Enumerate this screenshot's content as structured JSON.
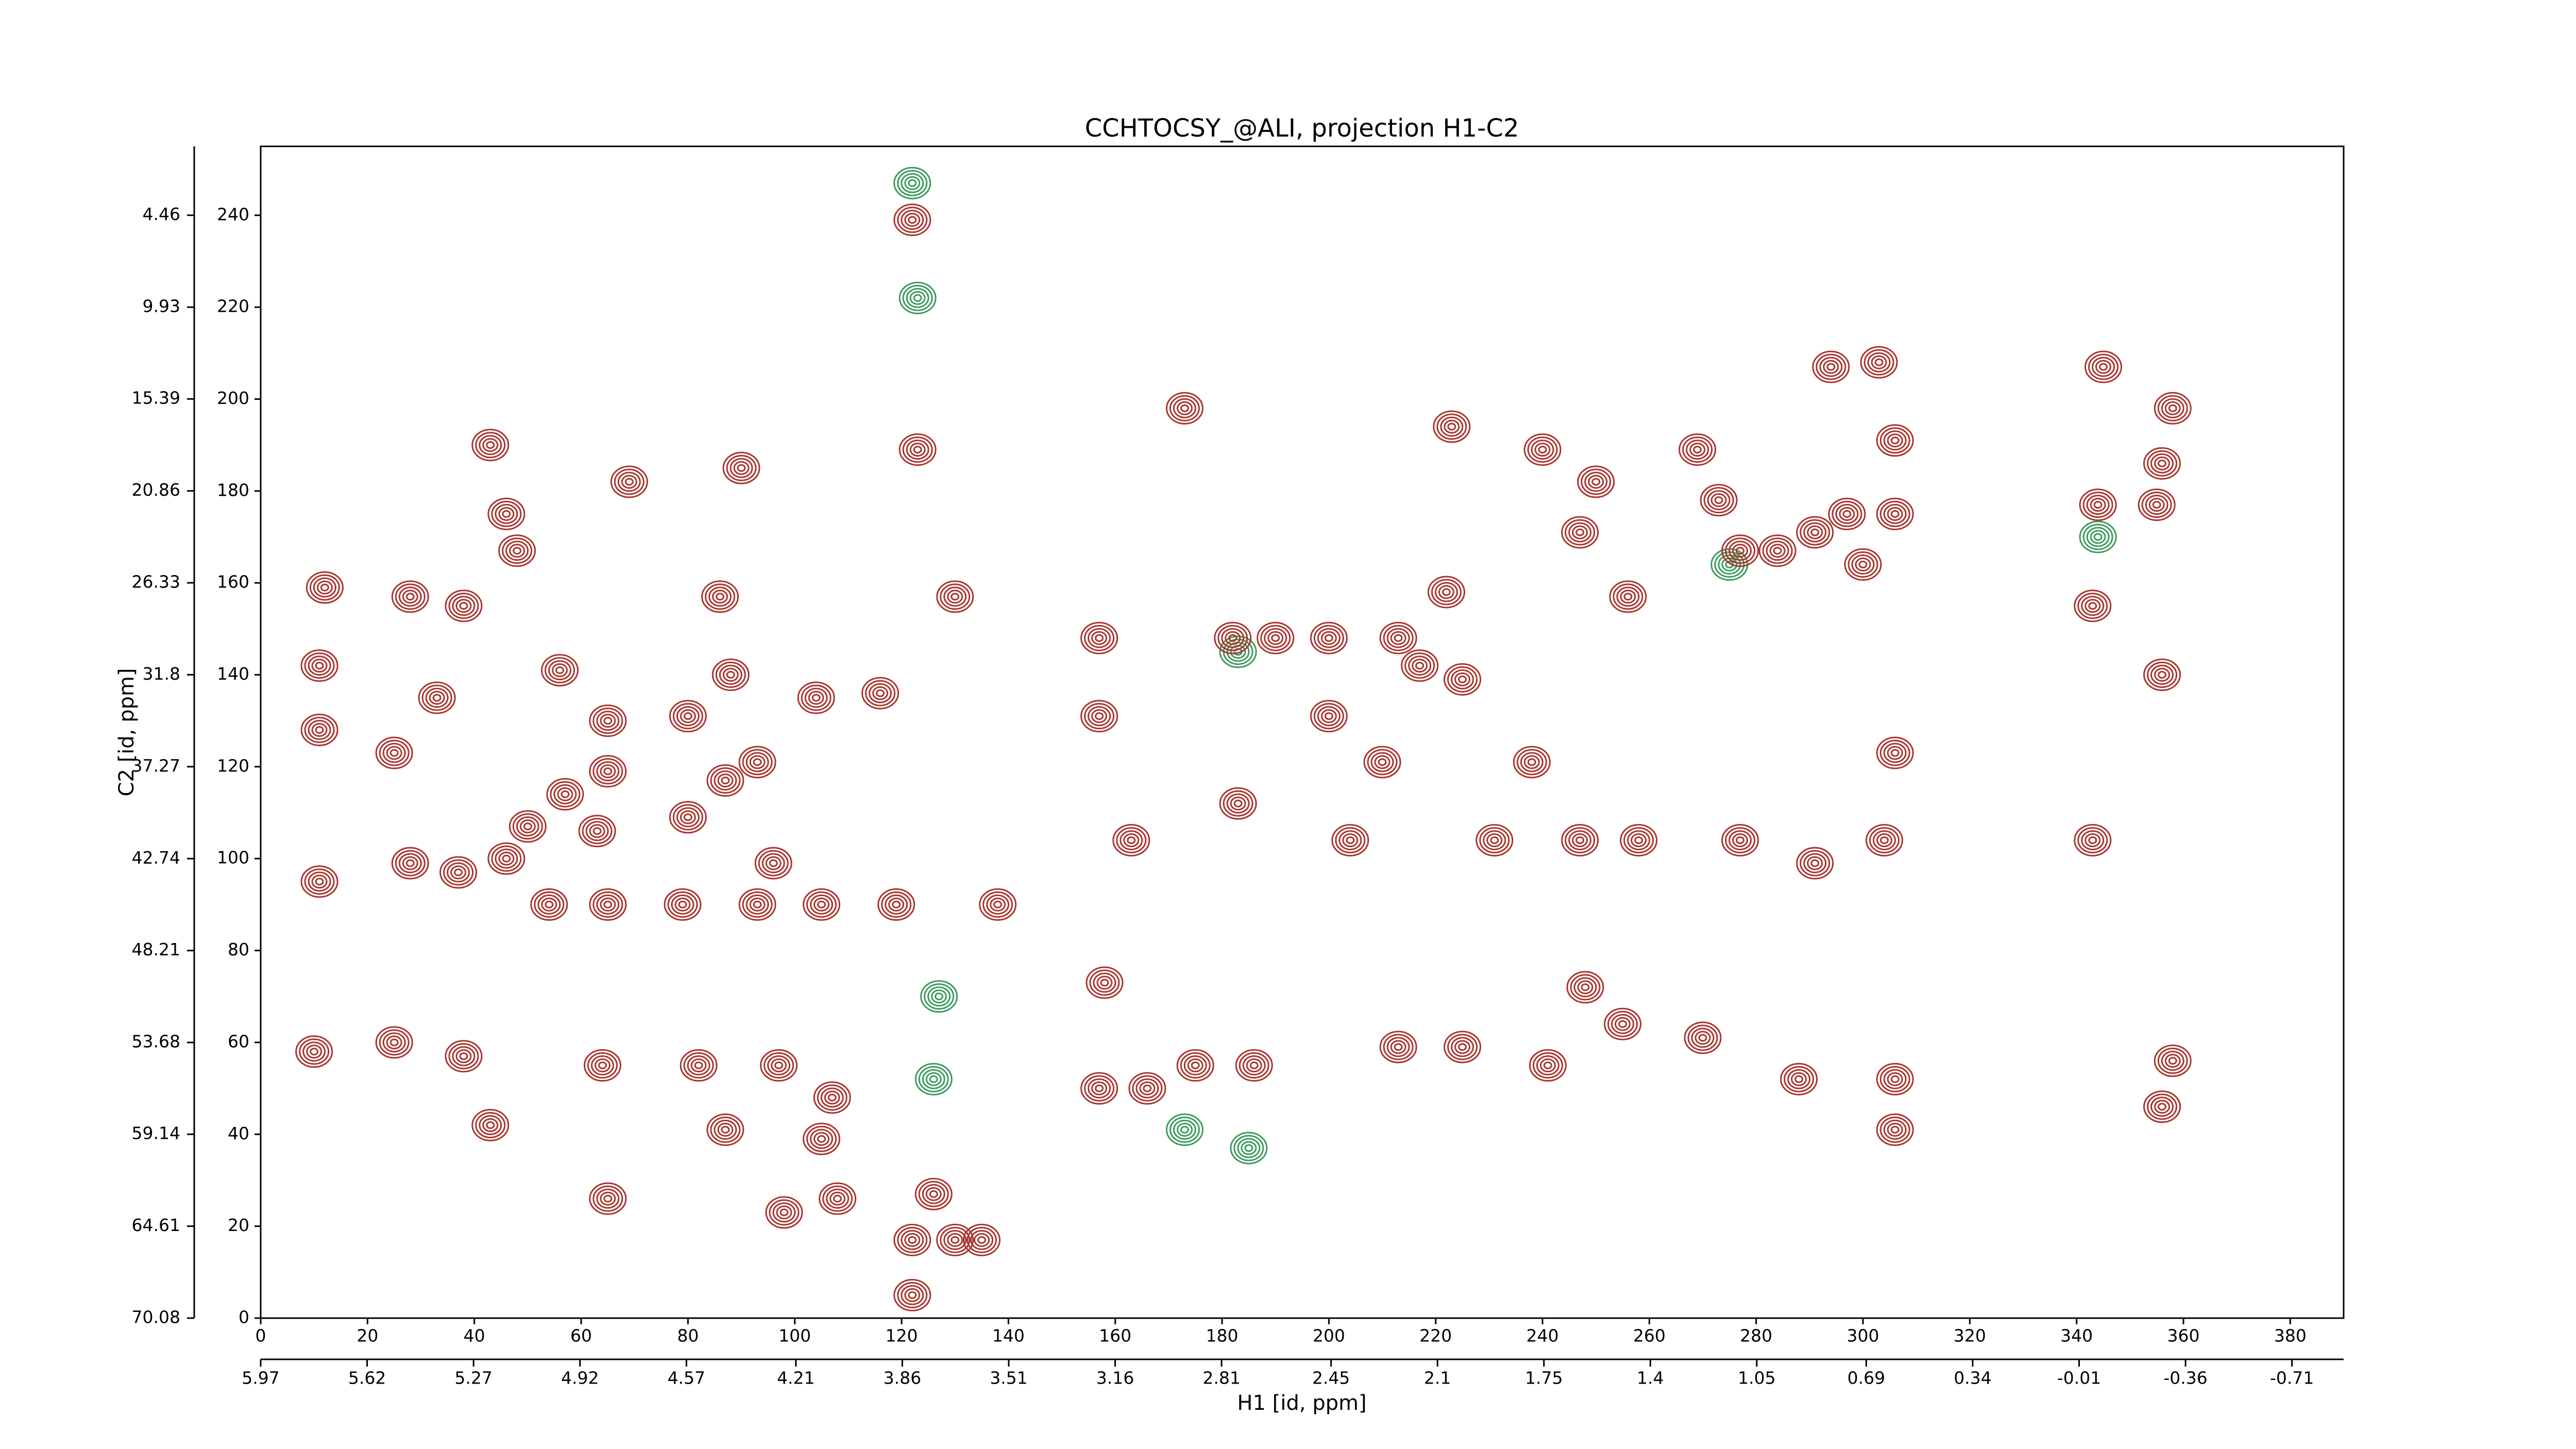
{
  "chart_data": {
    "type": "contour",
    "title": "CCHTOCSY_@ALI, projection H1-C2",
    "x_label": "H1 [id, ppm]",
    "y_label": "C2 [id, ppm]",
    "xlim": [
      0,
      390
    ],
    "xticks": [
      0,
      20,
      40,
      60,
      80,
      100,
      120,
      140,
      160,
      180,
      200,
      220,
      240,
      260,
      280,
      300,
      320,
      340,
      360,
      380
    ],
    "ylim": [
      0,
      255
    ],
    "yticks": [
      0,
      20,
      40,
      60,
      80,
      100,
      120,
      140,
      160,
      180,
      200,
      220,
      240
    ],
    "x2lim": [
      5.97,
      -0.88
    ],
    "x2ticks": [
      5.97,
      5.62,
      5.27,
      4.92,
      4.57,
      4.21,
      3.86,
      3.51,
      3.16,
      2.81,
      2.45,
      2.1,
      1.75,
      1.4,
      1.05,
      0.69,
      0.34,
      -0.01,
      -0.36,
      -0.71
    ],
    "y2lim": [
      70.08,
      0.36
    ],
    "y2ticks": [
      70.08,
      64.61,
      59.14,
      53.68,
      48.21,
      42.74,
      37.27,
      31.8,
      26.33,
      20.86,
      15.39,
      9.93,
      4.46
    ],
    "positive_color": "#a8352e",
    "negative_color": "#3c9a5c",
    "peaks": {
      "x": [
        122,
        123,
        12,
        11,
        11,
        25,
        33,
        28,
        38,
        43,
        46,
        48,
        56,
        65,
        65,
        57,
        50,
        63,
        69,
        54,
        65,
        37,
        28,
        11,
        46,
        80,
        80,
        87,
        93,
        90,
        86,
        79,
        93,
        105,
        119,
        138,
        88,
        96,
        104,
        116,
        130,
        10,
        25,
        38,
        64,
        82,
        97,
        107,
        43,
        87,
        105,
        65,
        98,
        108,
        122,
        126,
        130,
        135,
        122,
        158,
        183,
        182,
        173,
        190,
        157,
        157,
        163,
        175,
        186,
        204,
        200,
        210,
        217,
        223,
        225,
        238,
        231,
        247,
        258,
        248,
        255,
        270,
        269,
        273,
        277,
        284,
        291,
        297,
        300,
        306,
        306,
        294,
        303,
        277,
        291,
        304,
        306,
        306,
        306,
        345,
        358,
        356,
        344,
        355,
        343,
        356,
        343,
        358,
        356,
        200,
        213,
        213,
        225,
        241,
        157,
        166,
        288,
        222,
        247,
        256,
        250,
        240
      ],
      "y": [
        239,
        189,
        159,
        142,
        128,
        123,
        135,
        157,
        155,
        190,
        175,
        167,
        141,
        130,
        119,
        114,
        107,
        106,
        182,
        90,
        90,
        97,
        99,
        95,
        100,
        131,
        109,
        117,
        121,
        185,
        157,
        90,
        90,
        90,
        90,
        90,
        140,
        99,
        135,
        136,
        157,
        58,
        60,
        57,
        55,
        55,
        55,
        48,
        42,
        41,
        39,
        26,
        23,
        26,
        5,
        27,
        17,
        17,
        17,
        73,
        112,
        148,
        198,
        148,
        148,
        131,
        104,
        55,
        55,
        104,
        131,
        121,
        142,
        194,
        139,
        121,
        104,
        104,
        104,
        72,
        64,
        61,
        189,
        178,
        167,
        167,
        171,
        175,
        164,
        191,
        175,
        207,
        208,
        104,
        99,
        104,
        123,
        52,
        41,
        207,
        198,
        186,
        177,
        177,
        155,
        140,
        104,
        56,
        46,
        148,
        148,
        59,
        59,
        55,
        50,
        50,
        52,
        158,
        171,
        157,
        182,
        189
      ]
    },
    "negative_peaks": {
      "x": [
        123,
        122,
        126,
        127,
        173,
        185,
        275,
        344,
        183
      ],
      "y": [
        222,
        247,
        52,
        70,
        41,
        37,
        164,
        170,
        145
      ]
    }
  }
}
